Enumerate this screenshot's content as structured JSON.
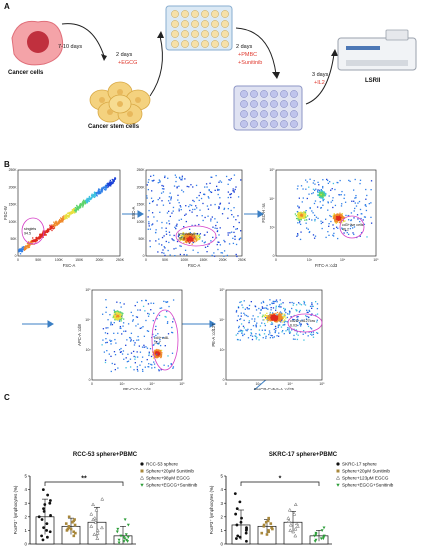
{
  "panelA": {
    "letter": "A",
    "cancer_cells": "Cancer cells",
    "cancer_stem_cells": "Cancer stem cells",
    "lsrii": "LSRII",
    "step1": "7-10 days",
    "step2_days": "2 days",
    "step2_treat": "+EGCG",
    "step3_days": "2 days",
    "step3_treat1": "+PMBC",
    "step3_treat2": "+Sunitinib",
    "step4_days": "3 days",
    "step4_treat": "+IL2"
  },
  "panelB": {
    "letter": "B",
    "plot1": {
      "xlabel": "FSC-A",
      "ylabel": "FSC-W",
      "gate": "singlets",
      "gate_value": "94.5",
      "xticks": [
        "0",
        "50K",
        "100K",
        "150K",
        "200K",
        "250K"
      ],
      "yticks": [
        "0",
        "50K",
        "100K",
        "150K",
        "200K",
        "250K"
      ]
    },
    "plot2": {
      "xlabel": "FSC-A",
      "ylabel": "SSC-A",
      "gate": "lymphocytes",
      "gate_value": "38.8",
      "xticks": [
        "0",
        "50K",
        "100K",
        "150K",
        "200K",
        "250K"
      ],
      "yticks": [
        "0",
        "50K",
        "100K",
        "150K",
        "200K",
        "250K"
      ]
    },
    "plot3": {
      "xlabel": "FITC-A :cd3",
      "ylabel": "FSC-H :ss",
      "gate": "cd3+live cells",
      "gate_value": "46.2",
      "xticks": [
        "0",
        "10³",
        "10⁴",
        "10⁵"
      ],
      "yticks": [
        "0",
        "10³",
        "10⁴",
        "10⁵"
      ]
    },
    "plot4": {
      "xlabel": "PE-Cy7-A :cd4",
      "ylabel": "APC-A :cd8",
      "gate": "cd4+cd8-",
      "gate_value": "11.7",
      "xticks": [
        "0",
        "10³",
        "10⁴",
        "10⁵"
      ],
      "yticks": [
        "0",
        "10³",
        "10⁴",
        "10⁵"
      ]
    },
    "plot5": {
      "xlabel": "PerCP-Cy5-5-A :cd25",
      "ylabel": "PE-A :cd127",
      "gate": "cd25+cd127low",
      "gate_value": "6.03",
      "xticks": [
        "0",
        "10³",
        "10⁴",
        "10⁵"
      ],
      "yticks": [
        "0",
        "10³",
        "10⁴",
        "10⁵"
      ]
    }
  },
  "panelC": {
    "letter": "C",
    "colors": {
      "black": "#111111",
      "gold": "#a8873a",
      "gray": "#b0b0b0",
      "green": "#2e9e3a"
    },
    "chart_data": [
      {
        "type": "bar",
        "title": "RCC-53 sphere+PBMC",
        "ylabel": "FoxP3⁺ lymphocytes (%)",
        "ylim": [
          0,
          5
        ],
        "yticks": [
          "0",
          "1",
          "2",
          "3",
          "4",
          "5"
        ],
        "significance": "**",
        "categories": [
          "RCC-53 sphere",
          "Sphere+20μM Sunitinib",
          "Sphere+98μM EGCG",
          "Sphere+EGCG+Sunitinib"
        ],
        "values": [
          2.0,
          1.3,
          1.6,
          0.6
        ],
        "errors": [
          1.3,
          0.6,
          1.1,
          0.7
        ],
        "points": [
          [
            0.3,
            0.6,
            0.9,
            1.2,
            1.5,
            1.8,
            2.1,
            2.4,
            2.6,
            2.9,
            3.2,
            3.6,
            4.0,
            1.0,
            0.5,
            2.0,
            3.0
          ],
          [
            0.6,
            0.8,
            1.0,
            1.1,
            1.3,
            1.4,
            1.6,
            1.8,
            2.0,
            1.2,
            0.9,
            1.5,
            1.7,
            1.1
          ],
          [
            0.4,
            0.7,
            1.0,
            1.3,
            1.6,
            1.9,
            2.2,
            2.5,
            2.9,
            3.3,
            1.2,
            0.8,
            1.8
          ],
          [
            0.1,
            0.2,
            0.3,
            0.4,
            0.5,
            0.6,
            0.7,
            0.9,
            1.1,
            1.4,
            1.8,
            0.3,
            0.2,
            0.5
          ]
        ]
      },
      {
        "type": "bar",
        "title": "SKRC-17 sphere+PBMC",
        "ylabel": "FoxP3⁺ lymphocytes (%)",
        "ylim": [
          0,
          5
        ],
        "yticks": [
          "0",
          "1",
          "2",
          "3",
          "4",
          "5"
        ],
        "significance": "*",
        "categories": [
          "SKRC-17 sphere",
          "Sphere+20μM Sunitinib",
          "Sphere+123μM EGCG",
          "Sphere+EGCG+Sunitinib"
        ],
        "values": [
          1.4,
          1.3,
          1.6,
          0.6
        ],
        "errors": [
          1.1,
          0.5,
          0.8,
          0.4
        ],
        "points": [
          [
            0.2,
            0.4,
            0.6,
            0.8,
            1.0,
            1.2,
            1.4,
            1.6,
            1.9,
            2.2,
            2.6,
            3.1,
            3.7,
            0.5,
            1.1
          ],
          [
            0.7,
            0.9,
            1.0,
            1.2,
            1.3,
            1.5,
            1.7,
            1.9,
            1.1,
            0.8,
            1.4,
            1.6
          ],
          [
            0.6,
            0.9,
            1.1,
            1.3,
            1.5,
            1.7,
            1.9,
            2.2,
            2.5,
            2.9,
            1.0,
            1.4
          ],
          [
            0.2,
            0.3,
            0.4,
            0.5,
            0.6,
            0.7,
            0.8,
            1.0,
            1.2,
            0.4,
            0.6
          ]
        ]
      }
    ]
  }
}
